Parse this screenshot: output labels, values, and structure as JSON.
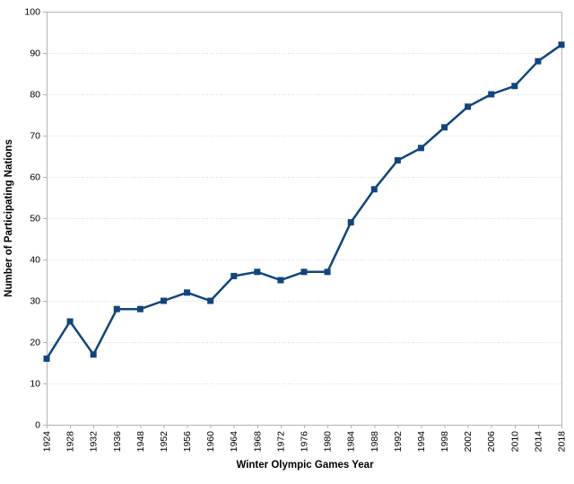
{
  "chart_data": {
    "type": "line",
    "title": "",
    "xlabel": "Winter Olympic Games Year",
    "ylabel": "Number of Participating Nations",
    "categories": [
      "1924",
      "1928",
      "1932",
      "1936",
      "1948",
      "1952",
      "1956",
      "1960",
      "1964",
      "1968",
      "1972",
      "1976",
      "1980",
      "1984",
      "1988",
      "1992",
      "1994",
      "1998",
      "2002",
      "2006",
      "2010",
      "2014",
      "2018"
    ],
    "values": [
      16,
      25,
      17,
      28,
      28,
      30,
      32,
      30,
      36,
      37,
      35,
      37,
      37,
      49,
      57,
      64,
      67,
      72,
      77,
      80,
      82,
      88,
      92
    ],
    "ylim": [
      0,
      100
    ],
    "ytick_step": 10,
    "grid": "horizontal-dotted",
    "legend": "none",
    "marker": "square",
    "colors": {
      "series": "#10457E",
      "axis": "#B3B3B3",
      "gridline": "#D4D4D4",
      "text": "#000000",
      "background": "#FFFFFF"
    }
  }
}
